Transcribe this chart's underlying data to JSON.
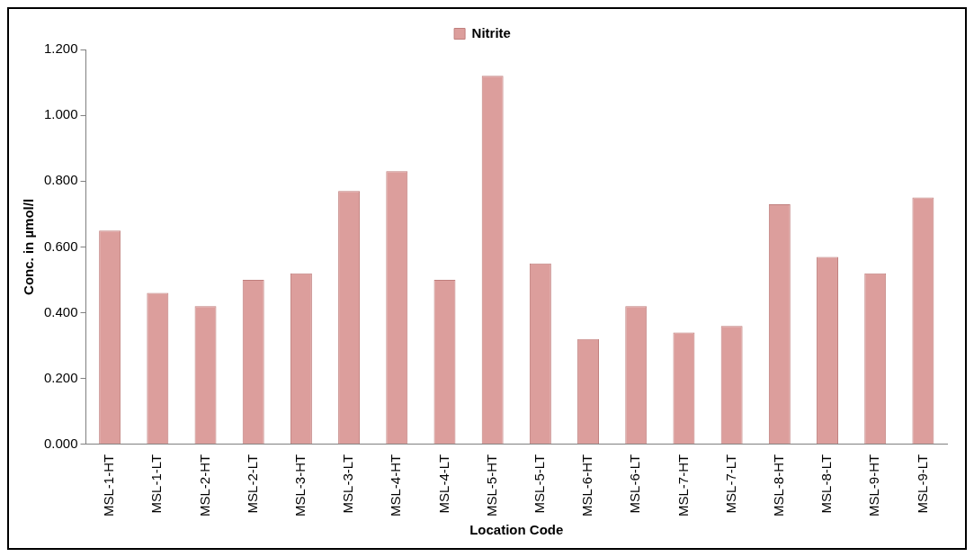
{
  "chart_data": {
    "type": "bar",
    "xlabel": "Location Code",
    "ylabel": "Conc. in µmol/l",
    "categories": [
      "MSL-1-HT",
      "MSL-1-LT",
      "MSL-2-HT",
      "MSL-2-LT",
      "MSL-3-HT",
      "MSL-3-LT",
      "MSL-4-HT",
      "MSL-4-LT",
      "MSL-5-HT",
      "MSL-5-LT",
      "MSL-6-HT",
      "MSL-6-LT",
      "MSL-7-HT",
      "MSL-7-LT",
      "MSL-8-HT",
      "MSL-8-LT",
      "MSL-9-HT",
      "MSL-9-LT"
    ],
    "series": [
      {
        "name": "Nitrite",
        "color": "#dc9e9c",
        "values": [
          0.65,
          0.46,
          0.42,
          0.5,
          0.52,
          0.77,
          0.83,
          0.5,
          1.12,
          0.55,
          0.32,
          0.42,
          0.34,
          0.36,
          0.73,
          0.57,
          0.52,
          0.75
        ]
      }
    ],
    "ylim": [
      0,
      1.2
    ],
    "yticks": [
      {
        "value": 0,
        "label": "0.000"
      },
      {
        "value": 0.2,
        "label": "0.200"
      },
      {
        "value": 0.4,
        "label": "0.400"
      },
      {
        "value": 0.6,
        "label": "0.600"
      },
      {
        "value": 0.8,
        "label": "0.800"
      },
      {
        "value": 1.0,
        "label": "1.000"
      },
      {
        "value": 1.2,
        "label": "1.200"
      }
    ],
    "grid": false,
    "legend": "top"
  }
}
